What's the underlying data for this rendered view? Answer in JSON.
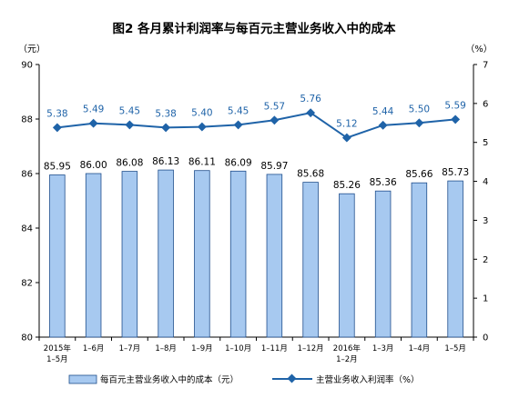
{
  "chart_data": {
    "type": "bar+line",
    "title": "图2  各月累计利润率与每百元主营业务收入中的成本",
    "categories": [
      [
        "2015年",
        "1–5月"
      ],
      [
        "1–6月"
      ],
      [
        "1–7月"
      ],
      [
        "1–8月"
      ],
      [
        "1–9月"
      ],
      [
        "1–10月"
      ],
      [
        "1–11月"
      ],
      [
        "1–12月"
      ],
      [
        "2016年",
        "1–2月"
      ],
      [
        "1–3月"
      ],
      [
        "1–4月"
      ],
      [
        "1–5月"
      ]
    ],
    "left_axis": {
      "unit": "（元）",
      "ylim": [
        80,
        90
      ],
      "ticks": [
        "80",
        "82",
        "84",
        "86",
        "88",
        "90"
      ]
    },
    "right_axis": {
      "unit": "（%）",
      "ylim": [
        0,
        7
      ],
      "ticks": [
        "0",
        "1",
        "2",
        "3",
        "4",
        "5",
        "6",
        "7"
      ]
    },
    "series": [
      {
        "name": "每百元主营业务收入中的成本（元）",
        "type": "bar",
        "axis": "left",
        "color": "#a7c9f0",
        "values": [
          85.95,
          86.0,
          86.08,
          86.13,
          86.11,
          86.09,
          85.97,
          85.68,
          85.26,
          85.36,
          85.66,
          85.73
        ],
        "labels": [
          "85.95",
          "86.00",
          "86.08",
          "86.13",
          "86.11",
          "86.09",
          "85.97",
          "85.68",
          "85.26",
          "85.36",
          "85.66",
          "85.73"
        ]
      },
      {
        "name": "主营业务收入利润率（%）",
        "type": "line",
        "axis": "right",
        "color": "#1f63a8",
        "values": [
          5.38,
          5.49,
          5.45,
          5.38,
          5.4,
          5.45,
          5.57,
          5.76,
          5.12,
          5.44,
          5.5,
          5.59
        ],
        "labels": [
          "5.38",
          "5.49",
          "5.45",
          "5.38",
          "5.40",
          "5.45",
          "5.57",
          "5.76",
          "5.12",
          "5.44",
          "5.50",
          "5.59"
        ]
      }
    ],
    "grid": false,
    "legend": "bottom"
  }
}
